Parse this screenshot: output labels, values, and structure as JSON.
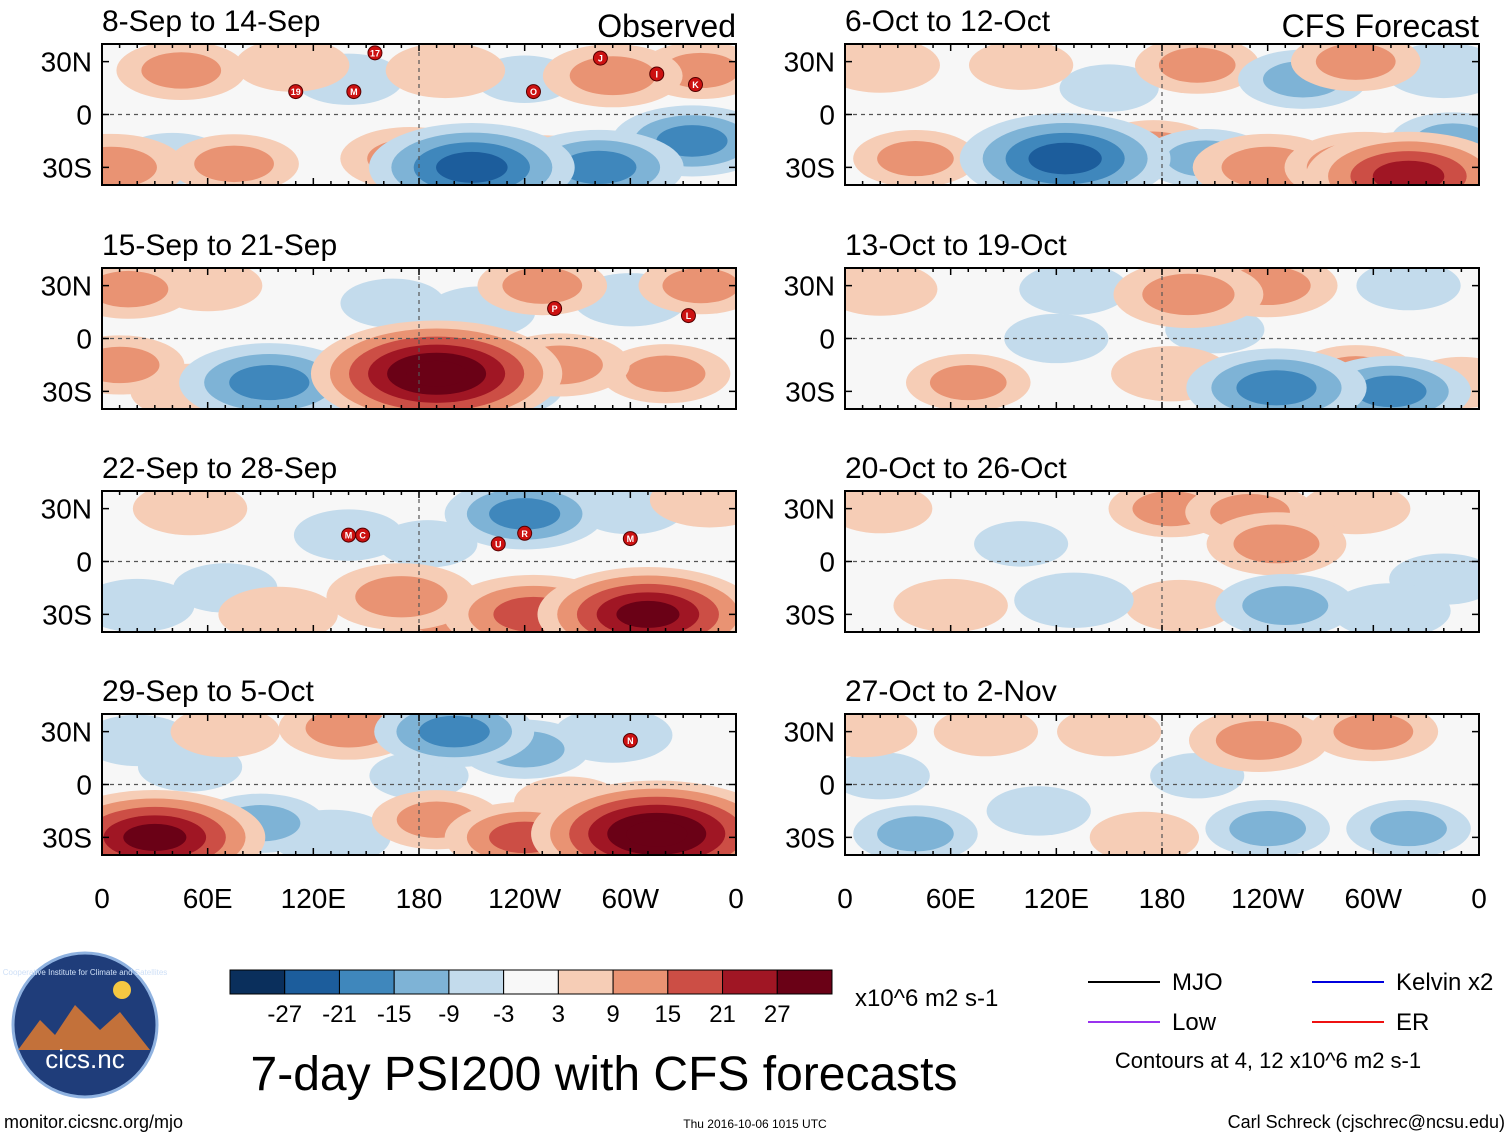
{
  "chart_data": {
    "type": "heatmap",
    "title": "7-day PSI200 with CFS forecasts",
    "units": "x10^6 m2 s-1",
    "observed_label": "Observed",
    "forecast_label": "CFS Forecast",
    "x_ticks": [
      "0",
      "60E",
      "120E",
      "180",
      "120W",
      "60W",
      "0"
    ],
    "x_tick_values": [
      0,
      60,
      120,
      180,
      240,
      300,
      360
    ],
    "y_ticks": [
      "30N",
      "0",
      "30S"
    ],
    "y_tick_values": [
      30,
      0,
      -30
    ],
    "lon_range": [
      0,
      360
    ],
    "lat_range": [
      -40,
      40
    ],
    "colorbar": {
      "labels": [
        "-27",
        "-21",
        "-15",
        "-9",
        "-3",
        "3",
        "9",
        "15",
        "21",
        "27"
      ],
      "levels": [
        -27,
        -21,
        -15,
        -9,
        -3,
        3,
        9,
        15,
        21,
        27
      ],
      "colors": [
        "#0a2f5c",
        "#1c5d9c",
        "#3f87bc",
        "#7eb3d6",
        "#c3dbec",
        "#f8f8f8",
        "#f6cdb6",
        "#e99373",
        "#cc4e45",
        "#a01624",
        "#6a0116"
      ]
    },
    "legend": {
      "items": [
        {
          "label": "MJO",
          "color": "#000000"
        },
        {
          "label": "Kelvin x2",
          "color": "#0000dd"
        },
        {
          "label": "Low",
          "color": "#9933ee"
        },
        {
          "label": "ER",
          "color": "#ee1111"
        }
      ],
      "contours_note": "Contours at 4, 12 x10^6 m2 s-1"
    },
    "panels": [
      {
        "column": "observed",
        "period": "8-Sep to 14-Sep",
        "anomalies": [
          {
            "lon": 45,
            "lat": 25,
            "val": 10
          },
          {
            "lon": 108,
            "lat": 28,
            "val": 7
          },
          {
            "lon": 195,
            "lat": 25,
            "val": 8
          },
          {
            "lon": 290,
            "lat": 22,
            "val": 12
          },
          {
            "lon": 340,
            "lat": 25,
            "val": 9
          },
          {
            "lon": 5,
            "lat": -30,
            "val": 14
          },
          {
            "lon": 75,
            "lat": -28,
            "val": 10
          },
          {
            "lon": 175,
            "lat": -25,
            "val": 12
          },
          {
            "lon": 210,
            "lat": -30,
            "val": -25
          },
          {
            "lon": 282,
            "lat": -30,
            "val": -18
          },
          {
            "lon": 335,
            "lat": -15,
            "val": -16
          },
          {
            "lon": 140,
            "lat": 20,
            "val": -6
          },
          {
            "lon": 240,
            "lat": 20,
            "val": -4
          },
          {
            "lon": 250,
            "lat": -28,
            "val": 9
          },
          {
            "lon": 40,
            "lat": -25,
            "val": -6
          }
        ],
        "storms": [
          {
            "lon": 110,
            "lat": 13,
            "label": "19"
          },
          {
            "lon": 143,
            "lat": 13,
            "label": "M"
          },
          {
            "lon": 155,
            "lat": 35,
            "label": "17"
          },
          {
            "lon": 245,
            "lat": 13,
            "label": "O"
          },
          {
            "lon": 283,
            "lat": 32,
            "label": "J"
          },
          {
            "lon": 315,
            "lat": 23,
            "label": "I"
          },
          {
            "lon": 337,
            "lat": 17,
            "label": "K"
          }
        ]
      },
      {
        "column": "observed",
        "period": "15-Sep to 21-Sep",
        "anomalies": [
          {
            "lon": 15,
            "lat": 28,
            "val": 10
          },
          {
            "lon": 60,
            "lat": 30,
            "val": 6
          },
          {
            "lon": 250,
            "lat": 30,
            "val": 10
          },
          {
            "lon": 340,
            "lat": 30,
            "val": 9
          },
          {
            "lon": 10,
            "lat": -15,
            "val": 10
          },
          {
            "lon": 95,
            "lat": -25,
            "val": -20
          },
          {
            "lon": 150,
            "lat": -25,
            "val": -18
          },
          {
            "lon": 190,
            "lat": -20,
            "val": 34
          },
          {
            "lon": 225,
            "lat": -28,
            "val": -10
          },
          {
            "lon": 260,
            "lat": -15,
            "val": 12
          },
          {
            "lon": 320,
            "lat": -20,
            "val": 10
          },
          {
            "lon": 215,
            "lat": 15,
            "val": -6
          },
          {
            "lon": 165,
            "lat": 20,
            "val": -5
          },
          {
            "lon": 50,
            "lat": -30,
            "val": 8
          },
          {
            "lon": 300,
            "lat": 22,
            "val": -7
          }
        ],
        "storms": [
          {
            "lon": 257,
            "lat": 17,
            "label": "P"
          },
          {
            "lon": 333,
            "lat": 13,
            "label": "L"
          }
        ]
      },
      {
        "column": "observed",
        "period": "22-Sep to 28-Sep",
        "anomalies": [
          {
            "lon": 50,
            "lat": 30,
            "val": 7
          },
          {
            "lon": 240,
            "lat": 27,
            "val": -16
          },
          {
            "lon": 300,
            "lat": 30,
            "val": -6
          },
          {
            "lon": 345,
            "lat": 35,
            "val": 8
          },
          {
            "lon": 100,
            "lat": -30,
            "val": 8
          },
          {
            "lon": 170,
            "lat": -20,
            "val": 14
          },
          {
            "lon": 195,
            "lat": -30,
            "val": 12
          },
          {
            "lon": 245,
            "lat": -30,
            "val": 20
          },
          {
            "lon": 310,
            "lat": -30,
            "val": 28
          },
          {
            "lon": 20,
            "lat": -25,
            "val": -7
          },
          {
            "lon": 140,
            "lat": 15,
            "val": -6
          },
          {
            "lon": 185,
            "lat": 10,
            "val": -4
          },
          {
            "lon": 70,
            "lat": -15,
            "val": -5
          }
        ],
        "storms": [
          {
            "lon": 140,
            "lat": 15,
            "label": "M"
          },
          {
            "lon": 148,
            "lat": 15,
            "label": "C"
          },
          {
            "lon": 225,
            "lat": 10,
            "label": "U"
          },
          {
            "lon": 240,
            "lat": 16,
            "label": "R"
          },
          {
            "lon": 300,
            "lat": 13,
            "label": "M"
          }
        ]
      },
      {
        "column": "observed",
        "period": "29-Sep to 5-Oct",
        "anomalies": [
          {
            "lon": 20,
            "lat": 25,
            "val": -6
          },
          {
            "lon": 70,
            "lat": 30,
            "val": 6
          },
          {
            "lon": 140,
            "lat": 32,
            "val": 12
          },
          {
            "lon": 200,
            "lat": 30,
            "val": -16
          },
          {
            "lon": 240,
            "lat": 20,
            "val": -10
          },
          {
            "lon": 290,
            "lat": 28,
            "val": -8
          },
          {
            "lon": 30,
            "lat": -30,
            "val": 28
          },
          {
            "lon": 90,
            "lat": -22,
            "val": -10
          },
          {
            "lon": 130,
            "lat": -30,
            "val": -8
          },
          {
            "lon": 190,
            "lat": -20,
            "val": 10
          },
          {
            "lon": 240,
            "lat": -30,
            "val": 16
          },
          {
            "lon": 315,
            "lat": -28,
            "val": 34
          },
          {
            "lon": 180,
            "lat": 5,
            "val": -4
          },
          {
            "lon": 265,
            "lat": -10,
            "val": 6
          },
          {
            "lon": 50,
            "lat": 10,
            "val": -5
          }
        ],
        "storms": [
          {
            "lon": 300,
            "lat": 25,
            "label": "N"
          }
        ]
      },
      {
        "column": "forecast",
        "period": "6-Oct to 12-Oct",
        "anomalies": [
          {
            "lon": 20,
            "lat": 28,
            "val": 8
          },
          {
            "lon": 100,
            "lat": 28,
            "val": 5
          },
          {
            "lon": 200,
            "lat": 28,
            "val": 9
          },
          {
            "lon": 260,
            "lat": 20,
            "val": -10
          },
          {
            "lon": 290,
            "lat": 30,
            "val": 10
          },
          {
            "lon": 340,
            "lat": 25,
            "val": -8
          },
          {
            "lon": 40,
            "lat": -25,
            "val": 9
          },
          {
            "lon": 125,
            "lat": -25,
            "val": -26
          },
          {
            "lon": 175,
            "lat": -20,
            "val": 10
          },
          {
            "lon": 205,
            "lat": -25,
            "val": -10
          },
          {
            "lon": 240,
            "lat": -30,
            "val": 14
          },
          {
            "lon": 295,
            "lat": -30,
            "val": 16
          },
          {
            "lon": 320,
            "lat": -35,
            "val": 25
          },
          {
            "lon": 345,
            "lat": -15,
            "val": -9
          },
          {
            "lon": 150,
            "lat": 15,
            "val": -4
          }
        ],
        "storms": []
      },
      {
        "column": "forecast",
        "period": "13-Oct to 19-Oct",
        "anomalies": [
          {
            "lon": 20,
            "lat": 28,
            "val": 7
          },
          {
            "lon": 130,
            "lat": 28,
            "val": -6
          },
          {
            "lon": 195,
            "lat": 25,
            "val": 14
          },
          {
            "lon": 240,
            "lat": 30,
            "val": 12
          },
          {
            "lon": 320,
            "lat": 30,
            "val": -5
          },
          {
            "lon": 70,
            "lat": -25,
            "val": 9
          },
          {
            "lon": 120,
            "lat": 0,
            "val": -5
          },
          {
            "lon": 185,
            "lat": -20,
            "val": 8
          },
          {
            "lon": 245,
            "lat": -28,
            "val": -20
          },
          {
            "lon": 290,
            "lat": -20,
            "val": 9
          },
          {
            "lon": 310,
            "lat": -30,
            "val": -16
          },
          {
            "lon": 350,
            "lat": -25,
            "val": 6
          },
          {
            "lon": 210,
            "lat": 5,
            "val": -4
          }
        ],
        "storms": []
      },
      {
        "column": "forecast",
        "period": "20-Oct to 26-Oct",
        "anomalies": [
          {
            "lon": 20,
            "lat": 30,
            "val": 5
          },
          {
            "lon": 185,
            "lat": 30,
            "val": 9
          },
          {
            "lon": 230,
            "lat": 28,
            "val": 10
          },
          {
            "lon": 290,
            "lat": 30,
            "val": 6
          },
          {
            "lon": 245,
            "lat": 10,
            "val": 12
          },
          {
            "lon": 60,
            "lat": -25,
            "val": 7
          },
          {
            "lon": 130,
            "lat": -22,
            "val": -8
          },
          {
            "lon": 190,
            "lat": -25,
            "val": 6
          },
          {
            "lon": 250,
            "lat": -25,
            "val": -12
          },
          {
            "lon": 310,
            "lat": -28,
            "val": -8
          },
          {
            "lon": 340,
            "lat": -10,
            "val": -6
          },
          {
            "lon": 100,
            "lat": 10,
            "val": -3
          }
        ],
        "storms": []
      },
      {
        "column": "forecast",
        "period": "27-Oct to 2-Nov",
        "anomalies": [
          {
            "lon": 10,
            "lat": 30,
            "val": 6
          },
          {
            "lon": 80,
            "lat": 30,
            "val": 5
          },
          {
            "lon": 150,
            "lat": 30,
            "val": 5
          },
          {
            "lon": 235,
            "lat": 25,
            "val": 12
          },
          {
            "lon": 300,
            "lat": 30,
            "val": 10
          },
          {
            "lon": 40,
            "lat": -28,
            "val": -9
          },
          {
            "lon": 110,
            "lat": -15,
            "val": -5
          },
          {
            "lon": 170,
            "lat": -30,
            "val": 6
          },
          {
            "lon": 240,
            "lat": -25,
            "val": -9
          },
          {
            "lon": 320,
            "lat": -25,
            "val": -9
          },
          {
            "lon": 20,
            "lat": 5,
            "val": -4
          },
          {
            "lon": 200,
            "lat": 5,
            "val": -3
          }
        ],
        "storms": []
      }
    ]
  },
  "footer": {
    "url": "monitor.cicsnc.org/mjo",
    "timestamp": "Thu 2016-10-06 1015 UTC",
    "credit": "Carl Schreck (cjschrec@ncsu.edu)"
  },
  "logo": {
    "text": "cics.nc",
    "ring_text": "Cooperative Institute for Climate and Satellites"
  }
}
